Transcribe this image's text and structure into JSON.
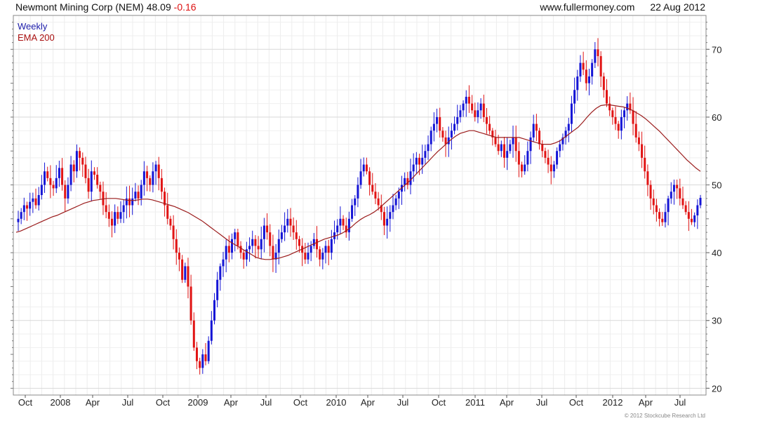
{
  "header": {
    "title": "Newmont Mining Corp (NEM)",
    "price": "48.09",
    "change": "-0.16",
    "website": "www.fullermoney.com",
    "date": "22 Aug 2012"
  },
  "legend": {
    "period": "Weekly",
    "indicator": "EMA 200"
  },
  "copyright": "© 2012 Stockcube Research Ltd",
  "colors": {
    "up_candle": "#1515d6",
    "down_candle": "#e11414",
    "ema_line": "#9b1c1c",
    "grid": "#d9d9d9",
    "frame": "#888888"
  },
  "chart_data": {
    "type": "candlestick",
    "frequency": "weekly",
    "y_axis": {
      "side": "right",
      "ylim": [
        19,
        75
      ],
      "ticks": [
        20,
        30,
        40,
        50,
        60,
        70
      ]
    },
    "x_axis": {
      "ticks": [
        "Oct",
        "2008",
        "Apr",
        "Jul",
        "Oct",
        "2009",
        "Apr",
        "Jul",
        "Oct",
        "2010",
        "Apr",
        "Jul",
        "Oct",
        "2011",
        "Apr",
        "Jul",
        "Oct",
        "2012",
        "Apr",
        "Jul"
      ],
      "start": "2007-09-14",
      "end": "2012-08-22"
    },
    "grid": true,
    "closes": [
      45,
      46,
      47,
      46.5,
      47.5,
      48,
      47,
      48.5,
      50,
      52,
      51,
      50,
      49.5,
      51,
      52.5,
      50,
      48,
      50,
      53,
      52,
      55,
      54,
      53,
      51,
      49,
      52,
      51.5,
      50,
      49,
      47,
      46,
      45,
      44,
      46,
      45,
      46,
      47,
      48,
      47,
      48,
      49,
      48,
      50,
      52,
      51,
      50,
      52,
      53,
      51,
      49,
      47,
      45,
      44,
      42,
      40,
      39,
      36,
      38,
      35,
      30,
      26,
      24,
      23,
      25,
      24,
      27,
      30,
      33,
      36,
      38,
      39,
      41,
      40,
      42,
      43,
      41,
      40,
      39,
      40.5,
      41,
      42,
      41,
      40.5,
      42,
      44,
      43,
      41,
      39,
      40,
      42,
      43,
      44,
      45,
      44,
      43,
      42,
      41,
      40,
      39,
      40,
      41,
      42,
      40.5,
      39,
      40,
      41,
      40,
      42,
      43,
      44,
      45,
      44,
      43,
      45,
      47,
      48,
      50,
      52,
      53,
      52,
      50,
      49,
      48,
      47,
      46,
      44,
      45,
      46,
      47,
      48,
      49,
      50,
      51,
      50,
      52,
      53,
      54,
      53,
      54,
      55,
      56,
      58,
      59,
      60,
      58,
      57,
      56,
      57,
      58,
      59,
      60,
      61,
      62,
      63,
      62,
      61,
      60,
      61,
      62,
      60,
      59,
      58,
      57,
      56,
      55,
      56,
      54,
      55,
      56,
      57,
      55,
      53,
      52,
      53,
      55,
      57,
      59,
      58,
      56,
      55,
      54,
      53,
      52,
      53,
      55,
      56,
      57,
      58,
      59,
      62,
      64,
      66,
      68,
      67,
      65,
      66,
      68,
      70,
      69,
      66,
      64,
      62,
      61,
      60,
      59,
      58,
      60,
      61,
      62,
      61,
      59,
      57,
      56,
      54,
      52,
      50,
      48,
      47,
      46,
      45,
      44.5,
      46,
      48,
      49,
      50,
      49.5,
      48,
      47,
      46,
      45,
      44.5,
      45.5,
      47,
      48.09
    ],
    "ema200": [
      43.0,
      43.2,
      43.5,
      43.8,
      44.1,
      44.4,
      44.7,
      45.0,
      45.3,
      45.5,
      45.8,
      46.1,
      46.4,
      46.7,
      47.0,
      47.3,
      47.5,
      47.7,
      47.8,
      47.9,
      48.0,
      48.0,
      48.0,
      47.9,
      47.8,
      47.7,
      47.7,
      47.8,
      47.9,
      47.9,
      47.8,
      47.6,
      47.4,
      47.2,
      47.0,
      46.8,
      46.5,
      46.2,
      45.9,
      45.5,
      45.1,
      44.7,
      44.2,
      43.7,
      43.2,
      42.7,
      42.2,
      41.7,
      41.3,
      40.9,
      40.5,
      40.1,
      39.7,
      39.3,
      39.1,
      39.0,
      39.0,
      39.1,
      39.2,
      39.4,
      39.6,
      39.9,
      40.2,
      40.5,
      40.8,
      41.1,
      41.4,
      41.7,
      42.0,
      42.2,
      42.4,
      42.6,
      42.9,
      43.3,
      43.8,
      44.4,
      44.9,
      45.3,
      45.6,
      46.0,
      46.5,
      47.1,
      47.7,
      48.3,
      48.9,
      49.5,
      50.1,
      50.7,
      51.4,
      52.1,
      52.8,
      53.5,
      54.2,
      54.9,
      55.5,
      56.1,
      56.7,
      57.2,
      57.6,
      57.8,
      58.0,
      58.0,
      57.8,
      57.6,
      57.4,
      57.2,
      57.0,
      57.0,
      57.0,
      57.0,
      57.0,
      57.0,
      56.8,
      56.6,
      56.4,
      56.2,
      56.0,
      56.0,
      56.0,
      56.2,
      56.5,
      57.0,
      57.5,
      58.0,
      58.5,
      59.2,
      60.0,
      60.7,
      61.3,
      61.7,
      61.8,
      61.8,
      61.7,
      61.6,
      61.5,
      61.3,
      61.0,
      60.6,
      60.2,
      59.7,
      59.1,
      58.5,
      57.9,
      57.2,
      56.5,
      55.8,
      55.1,
      54.4,
      53.7,
      53.1,
      52.5,
      52.0
    ]
  }
}
